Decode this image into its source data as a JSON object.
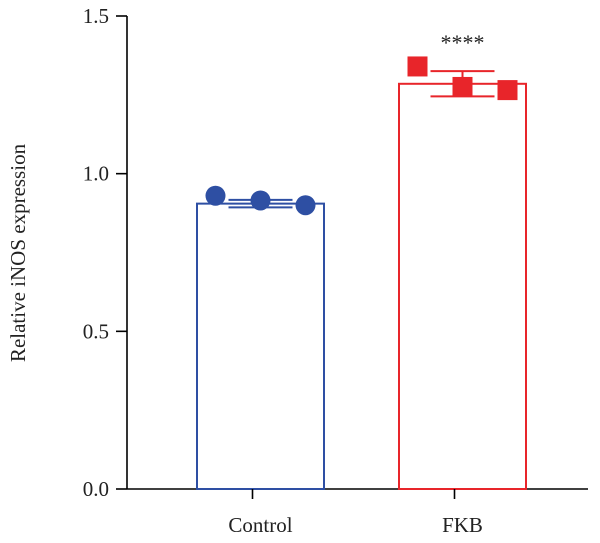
{
  "chart_data": {
    "type": "bar",
    "categories": [
      "Control",
      "FKB"
    ],
    "values": [
      0.905,
      1.285
    ],
    "errors": [
      0.012,
      0.04
    ],
    "points": [
      [
        0.93,
        0.915,
        0.9
      ],
      [
        1.34,
        1.275,
        1.265
      ]
    ],
    "markers": [
      "circle",
      "square"
    ],
    "colors": [
      "#2e4fa3",
      "#e8252a"
    ],
    "annotations": [
      "",
      "****"
    ],
    "title": "",
    "xlabel": "",
    "ylabel": "Relative iNOS expression",
    "ylim": [
      0,
      1.5
    ],
    "yticks": [
      "0.0",
      "0.5",
      "1.0",
      "1.5"
    ],
    "ytick_values": [
      0,
      0.5,
      1.0,
      1.5
    ],
    "grid": false,
    "legend": "none"
  }
}
